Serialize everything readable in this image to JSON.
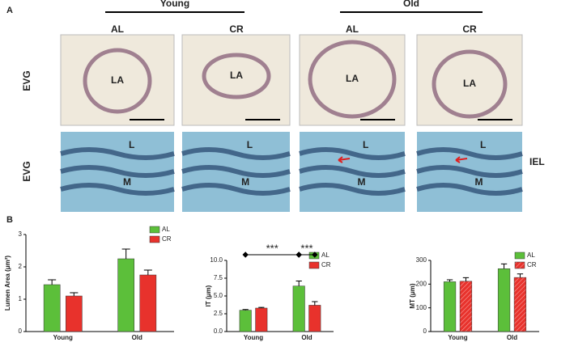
{
  "panel_a": {
    "label": "A",
    "groups": [
      "Young",
      "Old"
    ],
    "columns": [
      "AL",
      "CR",
      "AL",
      "CR"
    ],
    "rows": [
      "EVG",
      "EVG"
    ],
    "lumen_labels": [
      "LA",
      "LA",
      "LA",
      "LA"
    ],
    "layer_labels": [
      [
        "L",
        "M"
      ],
      [
        "L",
        "M"
      ],
      [
        "L",
        "M"
      ],
      [
        "L",
        "M"
      ]
    ],
    "iel_label": "IEL"
  },
  "panel_b": {
    "label": "B"
  },
  "chart_data": [
    {
      "type": "bar",
      "y_label": "Lumen Area (μm²)",
      "categories": [
        "Young",
        "Old"
      ],
      "series": [
        {
          "name": "AL",
          "color": "#5cbf3a",
          "values": [
            1.45,
            2.25
          ],
          "errors": [
            0.15,
            0.3
          ]
        },
        {
          "name": "CR",
          "color": "#e8322c",
          "values": [
            1.1,
            1.75
          ],
          "errors": [
            0.1,
            0.15
          ]
        }
      ],
      "ylim": [
        0,
        3
      ],
      "yticks": [
        0,
        1,
        2,
        3
      ],
      "legend": "upper right"
    },
    {
      "type": "bar",
      "y_label": "IT (μm)",
      "categories": [
        "Young",
        "Old"
      ],
      "series": [
        {
          "name": "AL",
          "color": "#5cbf3a",
          "values": [
            3.0,
            6.4
          ],
          "errors": [
            0.1,
            0.7
          ]
        },
        {
          "name": "CR",
          "color": "#e8322c",
          "values": [
            3.3,
            3.7
          ],
          "errors": [
            0.1,
            0.5
          ]
        }
      ],
      "ylim": [
        0,
        10
      ],
      "yticks": [
        {
          "value": 0,
          "label": "0.0"
        },
        {
          "value": 2.5,
          "label": "2.5"
        },
        {
          "value": 5,
          "label": "5.0"
        },
        {
          "value": 7.5,
          "label": "7.5"
        },
        {
          "value": 10,
          "label": "10.0"
        }
      ],
      "annotations": [
        "***",
        "***"
      ],
      "legend": "upper right"
    },
    {
      "type": "bar",
      "y_label": "MT (μm)",
      "categories": [
        "Young",
        "Old"
      ],
      "series": [
        {
          "name": "AL",
          "color": "#5cbf3a",
          "values": [
            210,
            265
          ],
          "errors": [
            8,
            20
          ]
        },
        {
          "name": "CR",
          "color": "#e8322c",
          "values": [
            212,
            228
          ],
          "errors": [
            15,
            15
          ]
        }
      ],
      "ylim": [
        0,
        300
      ],
      "yticks": [
        0,
        100,
        200,
        300
      ],
      "legend": "upper right"
    }
  ]
}
